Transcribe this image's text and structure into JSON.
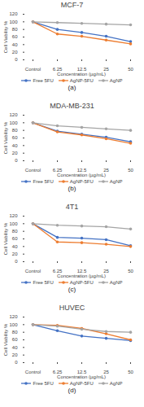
{
  "chart_data": [
    {
      "type": "line",
      "title": "MCF-7",
      "xlabel": "Concentration (µg/mL)",
      "ylabel": "Cell Viability %",
      "categories": [
        "Control",
        "6.25",
        "12.5",
        "25",
        "50"
      ],
      "series": [
        {
          "name": "Free 5FU",
          "color": "#4472c4",
          "values": [
            100,
            80,
            72,
            62,
            48
          ]
        },
        {
          "name": "AgNP-5FU",
          "color": "#ed7d31",
          "values": [
            100,
            68,
            62,
            52,
            42
          ]
        },
        {
          "name": "AgNP",
          "color": "#a5a5a5",
          "values": [
            100,
            98,
            96,
            94,
            92
          ]
        }
      ],
      "ylim": [
        0,
        120
      ],
      "yticks": [
        0,
        20,
        40,
        60,
        80,
        100,
        120
      ],
      "grid": false,
      "marker": "circle",
      "legend": "bottom",
      "annotations": [
        "(a)"
      ]
    },
    {
      "type": "line",
      "title": "MDA-MB-231",
      "xlabel": "Concentration (µg/mL)",
      "ylabel": "Cell Viability %",
      "categories": [
        "Control",
        "6.25",
        "12.5",
        "25",
        "50"
      ],
      "series": [
        {
          "name": "Free 5FU",
          "color": "#4472c4",
          "values": [
            100,
            78,
            70,
            62,
            50
          ]
        },
        {
          "name": "AgNP-5FU",
          "color": "#ed7d31",
          "values": [
            100,
            76,
            68,
            58,
            46
          ]
        },
        {
          "name": "AgNP",
          "color": "#a5a5a5",
          "values": [
            100,
            92,
            88,
            84,
            80
          ]
        }
      ],
      "ylim": [
        0,
        120
      ],
      "yticks": [
        0,
        20,
        40,
        60,
        80,
        100,
        120
      ],
      "grid": false,
      "marker": "circle",
      "legend": "bottom",
      "annotations": [
        "(b)"
      ]
    },
    {
      "type": "line",
      "title": "4T1",
      "xlabel": "Concentration (µg/mL)",
      "ylabel": "Cell Viability %",
      "categories": [
        "Control",
        "6.25",
        "12.5",
        "25",
        "50"
      ],
      "series": [
        {
          "name": "Free 5FU",
          "color": "#4472c4",
          "values": [
            100,
            64,
            62,
            58,
            42
          ]
        },
        {
          "name": "AgNP-5FU",
          "color": "#ed7d31",
          "values": [
            100,
            52,
            50,
            46,
            40
          ]
        },
        {
          "name": "AgNP",
          "color": "#a5a5a5",
          "values": [
            100,
            96,
            94,
            92,
            86
          ]
        }
      ],
      "ylim": [
        0,
        120
      ],
      "yticks": [
        0,
        20,
        40,
        60,
        80,
        100,
        120
      ],
      "grid": false,
      "marker": "circle",
      "legend": "bottom",
      "annotations": [
        "(c)"
      ]
    },
    {
      "type": "line",
      "title": "HUVEC",
      "xlabel": "Concentration (µg/mL)",
      "ylabel": "Cell Viability %",
      "categories": [
        "Control",
        "6.25",
        "12.5",
        "25",
        "50"
      ],
      "series": [
        {
          "name": "Free 5FU",
          "color": "#4472c4",
          "values": [
            100,
            84,
            70,
            64,
            58
          ]
        },
        {
          "name": "AgNP-5FU",
          "color": "#ed7d31",
          "values": [
            100,
            98,
            90,
            76,
            60
          ]
        },
        {
          "name": "AgNP",
          "color": "#a5a5a5",
          "values": [
            100,
            96,
            88,
            82,
            80
          ]
        }
      ],
      "ylim": [
        0,
        120
      ],
      "yticks": [
        0,
        20,
        40,
        60,
        80,
        100,
        120
      ],
      "grid": false,
      "marker": "circle",
      "legend": "bottom",
      "annotations": [
        "(d)"
      ]
    }
  ]
}
